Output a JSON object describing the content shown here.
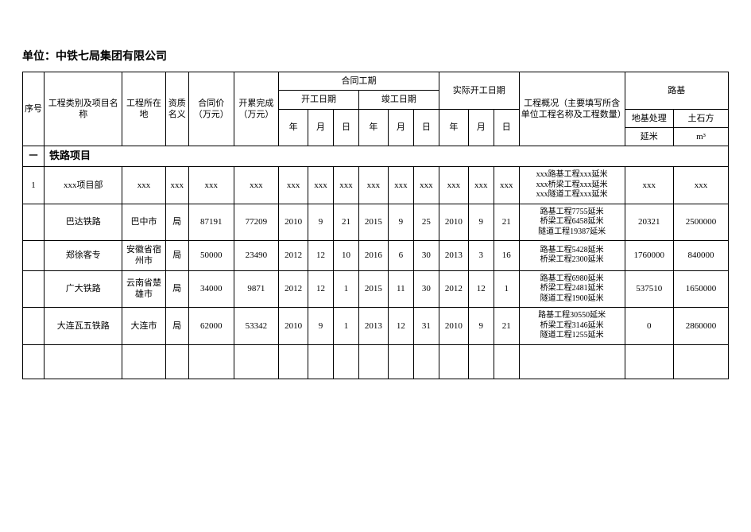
{
  "unit_line": "单位：中铁七局集团有限公司",
  "header": {
    "seq": "序号",
    "proj_name": "工程类别及项目名称",
    "location": "工程所在地",
    "qualification": "资质名义",
    "contract_amount": "合同价（万元）",
    "completed": "开累完成（万元）",
    "contract_period": "合同工期",
    "start_date": "开工日期",
    "end_date": "竣工日期",
    "actual_start": "实际开工日期",
    "year": "年",
    "month": "月",
    "day": "日",
    "overview": "工程概况（主要填写所含单位工程名称及工程数量）",
    "subgrade": "路基",
    "ground_treat": "地基处理",
    "earthwork": "土石方",
    "unit_yanmi": "延米",
    "unit_m3": "m³"
  },
  "section": {
    "num": "一",
    "title": "铁路项目"
  },
  "rows": [
    {
      "seq": "1",
      "name": "xxx项目部",
      "loc": "xxx",
      "qual": "xxx",
      "amt": "xxx",
      "done": "xxx",
      "cs_y": "xxx",
      "cs_m": "xxx",
      "cs_d": "xxx",
      "ce_y": "xxx",
      "ce_m": "xxx",
      "ce_d": "xxx",
      "as_y": "xxx",
      "as_m": "xxx",
      "as_d": "xxx",
      "desc": "xxx路基工程xxx延米\nxxx桥梁工程xxx延米\nxxx隧道工程xxx延米",
      "sub1": "xxx",
      "sub2": "xxx"
    },
    {
      "seq": "",
      "name": "巴达铁路",
      "loc": "巴中市",
      "qual": "局",
      "amt": "87191",
      "done": "77209",
      "cs_y": "2010",
      "cs_m": "9",
      "cs_d": "21",
      "ce_y": "2015",
      "ce_m": "9",
      "ce_d": "25",
      "as_y": "2010",
      "as_m": "9",
      "as_d": "21",
      "desc": "路基工程7755延米\n桥梁工程6458延米\n隧道工程19387延米",
      "sub1": "20321",
      "sub2": "2500000"
    },
    {
      "seq": "",
      "name": "郑徐客专",
      "loc": "安徽省宿州市",
      "qual": "局",
      "amt": "50000",
      "done": "23490",
      "cs_y": "2012",
      "cs_m": "12",
      "cs_d": "10",
      "ce_y": "2016",
      "ce_m": "6",
      "ce_d": "30",
      "as_y": "2013",
      "as_m": "3",
      "as_d": "16",
      "desc": "路基工程5428延米\n桥梁工程2300延米",
      "sub1": "1760000",
      "sub2": "840000"
    },
    {
      "seq": "",
      "name": "广大铁路",
      "loc": "云南省楚雄市",
      "qual": "局",
      "amt": "34000",
      "done": "9871",
      "cs_y": "2012",
      "cs_m": "12",
      "cs_d": "1",
      "ce_y": "2015",
      "ce_m": "11",
      "ce_d": "30",
      "as_y": "2012",
      "as_m": "12",
      "as_d": "1",
      "desc": "路基工程6980延米\n桥梁工程2481延米\n隧道工程1900延米",
      "sub1": "537510",
      "sub2": "1650000"
    },
    {
      "seq": "",
      "name": "大连瓦五铁路",
      "loc": "大连市",
      "qual": "局",
      "amt": "62000",
      "done": "53342",
      "cs_y": "2010",
      "cs_m": "9",
      "cs_d": "1",
      "ce_y": "2013",
      "ce_m": "12",
      "ce_d": "31",
      "as_y": "2010",
      "as_m": "9",
      "as_d": "21",
      "desc": "路基工程30550延米\n桥梁工程3146延米\n隧道工程1255延米",
      "sub1": "0",
      "sub2": "2860000"
    }
  ]
}
